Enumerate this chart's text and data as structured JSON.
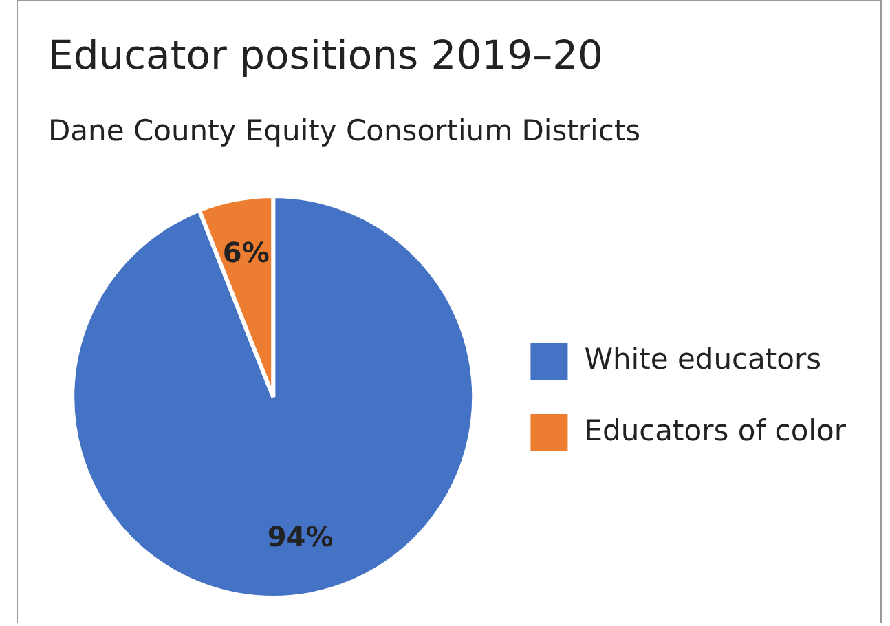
{
  "chart_data": {
    "type": "pie",
    "title": "Educator positions 2019–20",
    "subtitle": "Dane County Equity Consortium Districts",
    "categories": [
      "White educators",
      "Educators of color"
    ],
    "values": [
      94,
      6
    ],
    "colors": [
      "#4472c4",
      "#ed7d31"
    ],
    "value_labels": [
      "94%",
      "6%"
    ],
    "legend": "right"
  }
}
